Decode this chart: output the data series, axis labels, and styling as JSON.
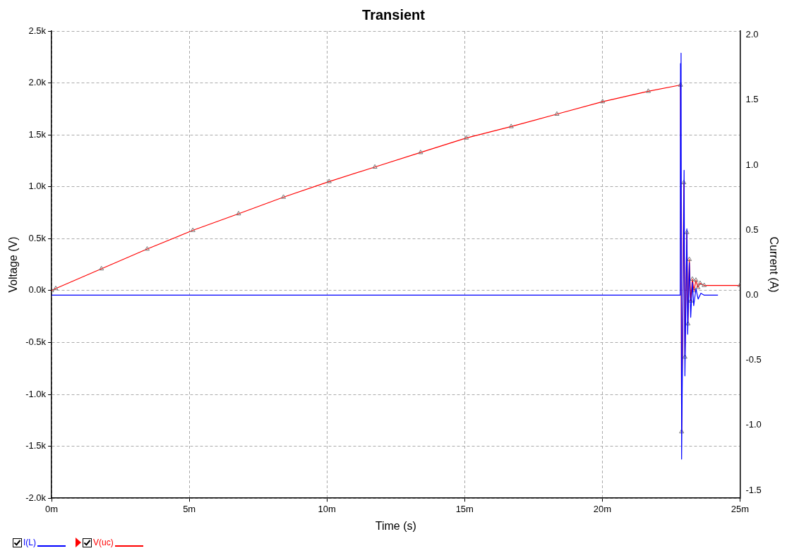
{
  "chart_data": {
    "type": "line",
    "title": "Transient",
    "xlabel": "Time (s)",
    "ylabel": "Voltage (V)",
    "y2label": "Current (A)",
    "xlim": [
      0,
      25
    ],
    "xticks": [
      {
        "value": 0,
        "label": "0m"
      },
      {
        "value": 5,
        "label": "5m"
      },
      {
        "value": 10,
        "label": "10m"
      },
      {
        "value": 15,
        "label": "15m"
      },
      {
        "value": 20,
        "label": "20m"
      },
      {
        "value": 25,
        "label": "25m"
      }
    ],
    "ylim": [
      -2000,
      2500
    ],
    "yticks": [
      {
        "value": -2000,
        "label": "-2.0k"
      },
      {
        "value": -1500,
        "label": "-1.5k"
      },
      {
        "value": -1000,
        "label": "-1.0k"
      },
      {
        "value": -500,
        "label": "-0.5k"
      },
      {
        "value": 0,
        "label": "0.0k"
      },
      {
        "value": 500,
        "label": "0.5k"
      },
      {
        "value": 1000,
        "label": "1.0k"
      },
      {
        "value": 1500,
        "label": "1.5k"
      },
      {
        "value": 2000,
        "label": "2.0k"
      },
      {
        "value": 2500,
        "label": "2.5k"
      }
    ],
    "y2lim": [
      -1.56,
      2.03
    ],
    "y2ticks": [
      {
        "value": -1.5,
        "label": "-1.5"
      },
      {
        "value": -1,
        "label": "-1.0"
      },
      {
        "value": -0.5,
        "label": "-0.5"
      },
      {
        "value": 0,
        "label": "0.0"
      },
      {
        "value": 0.5,
        "label": "0.5"
      },
      {
        "value": 1,
        "label": "1.0"
      },
      {
        "value": 1.5,
        "label": "1.5"
      },
      {
        "value": 2,
        "label": "2.0"
      }
    ],
    "grid": true,
    "legend": "bottom left",
    "line_style": "solid",
    "series": [
      {
        "name": "I(L)",
        "color": "#0000ff",
        "axis": "y2",
        "marker": "none",
        "x": [
          0,
          22.83,
          22.84,
          22.86,
          22.88,
          22.97,
          23,
          23.07,
          23.1,
          23.16,
          23.21,
          23.27,
          23.32,
          23.4,
          23.48,
          23.58,
          23.7,
          24.2
        ],
        "values": [
          0,
          0,
          1.78,
          1.86,
          -1.26,
          0.96,
          -0.62,
          0.51,
          -0.3,
          0.25,
          -0.17,
          0.1,
          -0.08,
          0.05,
          -0.03,
          0.015,
          0,
          0
        ]
      },
      {
        "name": "V(uc)",
        "color": "#ff0000",
        "marker": "triangle",
        "x": [
          0,
          0.15,
          1.81,
          3.47,
          5.13,
          6.79,
          8.42,
          10.08,
          11.74,
          13.4,
          15.06,
          16.69,
          18.35,
          20.01,
          21.67,
          22.84,
          22.88,
          22.96,
          23,
          23.07,
          23.11,
          23.16,
          23.21,
          23.27,
          23.33,
          23.4,
          23.47,
          23.55,
          23.7,
          25
        ],
        "values": [
          0,
          20,
          210,
          400,
          580,
          740,
          900,
          1050,
          1190,
          1330,
          1470,
          1580,
          1700,
          1820,
          1920,
          1980,
          -1360,
          1040,
          -640,
          560,
          -320,
          300,
          -100,
          110,
          0,
          100,
          30,
          70,
          50,
          50
        ]
      }
    ]
  }
}
